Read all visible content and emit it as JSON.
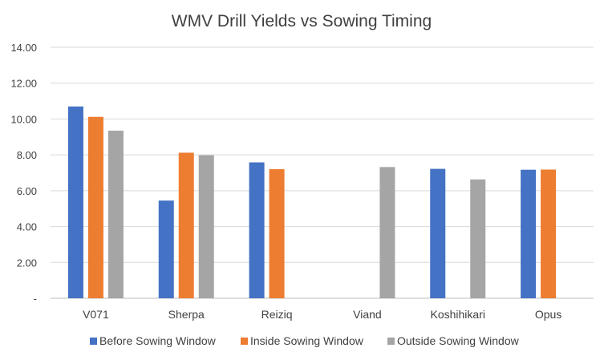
{
  "chart_data": {
    "type": "bar",
    "title": "WMV Drill Yields vs Sowing Timing",
    "categories": [
      "V071",
      "Sherpa",
      "Reiziq",
      "Viand",
      "Koshihikari",
      "Opus"
    ],
    "series": [
      {
        "name": "Before Sowing Window",
        "color": "#4472C4",
        "values": [
          10.7,
          5.45,
          7.58,
          null,
          7.22,
          7.17
        ]
      },
      {
        "name": "Inside Sowing Window",
        "color": "#ED7D31",
        "values": [
          10.12,
          8.12,
          7.2,
          null,
          null,
          7.18
        ]
      },
      {
        "name": "Outside Sowing Window",
        "color": "#A5A5A5",
        "values": [
          9.35,
          7.98,
          null,
          7.32,
          6.63,
          null
        ]
      }
    ],
    "ylim": [
      0,
      14
    ],
    "yticks": [
      "-",
      "2.00",
      "4.00",
      "6.00",
      "8.00",
      "10.00",
      "12.00",
      "14.00"
    ],
    "grid": true,
    "legend": "bottom"
  }
}
